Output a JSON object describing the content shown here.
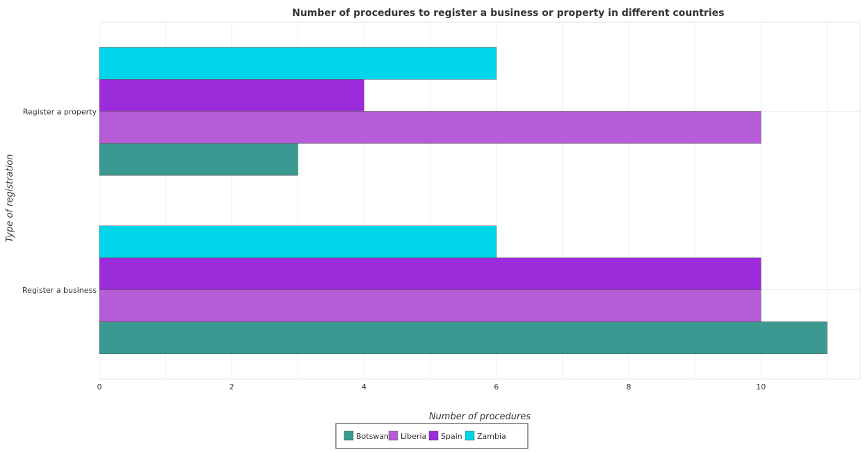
{
  "chart_data": {
    "type": "bar",
    "orientation": "horizontal",
    "title": "Number of procedures to register a business or property in different countries",
    "xlabel": "Number of procedures",
    "ylabel": "Type of registration",
    "categories": [
      "Register a business",
      "Register a property"
    ],
    "series": [
      {
        "name": "Botswana",
        "color": "#3a9a91",
        "values": [
          11,
          3
        ]
      },
      {
        "name": "Liberia",
        "color": "#b65cd6",
        "values": [
          10,
          10
        ]
      },
      {
        "name": "Spain",
        "color": "#9b2bdb",
        "values": [
          10,
          4
        ]
      },
      {
        "name": "Zambia",
        "color": "#00d5e9",
        "values": [
          6,
          6
        ]
      }
    ],
    "xlim": [
      0,
      11.5
    ],
    "xticks": [
      0,
      2,
      4,
      6,
      8,
      10
    ],
    "grid": true,
    "legend_position": "bottom"
  }
}
